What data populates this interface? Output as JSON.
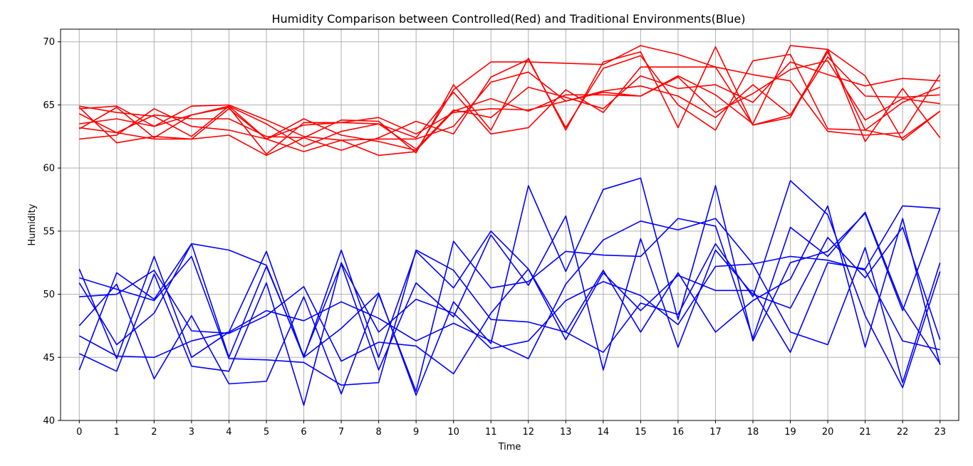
{
  "chart_data": {
    "type": "line",
    "title": "Humidity Comparison between Controlled(Red) and Traditional Environments(Blue)",
    "xlabel": "Time",
    "ylabel": "Humidity",
    "x": [
      0,
      1,
      2,
      3,
      4,
      5,
      6,
      7,
      8,
      9,
      10,
      11,
      12,
      13,
      14,
      15,
      16,
      17,
      18,
      19,
      20,
      21,
      22,
      23
    ],
    "xlim": [
      -0.5,
      23.5
    ],
    "ylim": [
      40,
      71
    ],
    "yticks": [
      40,
      45,
      50,
      55,
      60,
      65,
      70
    ],
    "grid": true,
    "colors": {
      "controlled": "#ff0000",
      "traditional": "#0000ff"
    },
    "series": [
      {
        "group": "controlled",
        "values": [
          64.8,
          62.0,
          62.5,
          62.3,
          62.6,
          61.0,
          62.4,
          63.8,
          63.7,
          61.2,
          66.6,
          63.0,
          68.7,
          63.0,
          68.4,
          69.2,
          63.2,
          69.6,
          63.4,
          64.0,
          69.4,
          67.3,
          62.2,
          64.5
        ]
      },
      {
        "group": "controlled",
        "values": [
          63.2,
          62.8,
          62.3,
          62.3,
          64.7,
          62.3,
          61.3,
          62.2,
          61.0,
          61.3,
          66.2,
          68.4,
          68.4,
          68.3,
          68.2,
          69.7,
          69.0,
          68.0,
          63.4,
          64.2,
          69.2,
          63.0,
          62.4,
          64.5
        ]
      },
      {
        "group": "controlled",
        "values": [
          62.3,
          62.6,
          64.7,
          63.3,
          63.0,
          62.3,
          63.9,
          62.6,
          62.1,
          61.4,
          64.5,
          65.5,
          64.5,
          65.8,
          65.8,
          65.7,
          67.3,
          65.8,
          63.5,
          69.7,
          69.4,
          62.1,
          66.3,
          62.4
        ]
      },
      {
        "group": "controlled",
        "values": [
          63.5,
          63.9,
          63.3,
          64.2,
          64.8,
          61.1,
          63.6,
          63.6,
          63.5,
          62.4,
          66.0,
          62.7,
          63.2,
          66.2,
          64.4,
          68.0,
          68.0,
          68.0,
          67.4,
          66.9,
          62.9,
          62.6,
          62.8,
          67.4
        ]
      },
      {
        "group": "controlled",
        "values": [
          64.3,
          62.8,
          64.2,
          63.9,
          63.9,
          62.5,
          62.4,
          61.4,
          62.4,
          63.7,
          62.7,
          67.2,
          68.6,
          63.2,
          67.9,
          68.9,
          65.0,
          63.0,
          68.5,
          69.0,
          63.1,
          63.0,
          65.2,
          66.4
        ]
      },
      {
        "group": "controlled",
        "values": [
          64.9,
          64.4,
          64.1,
          62.5,
          64.9,
          63.5,
          61.7,
          62.9,
          63.5,
          61.5,
          64.6,
          64.0,
          66.4,
          65.6,
          64.7,
          67.3,
          66.3,
          66.6,
          65.2,
          68.4,
          67.4,
          66.5,
          67.1,
          66.9
        ]
      },
      {
        "group": "controlled",
        "values": [
          63.1,
          64.8,
          62.4,
          64.2,
          64.9,
          62.3,
          63.4,
          63.6,
          64.0,
          62.7,
          64.4,
          64.7,
          64.6,
          65.3,
          66.1,
          66.5,
          65.7,
          64.0,
          66.6,
          64.2,
          68.8,
          65.7,
          65.6,
          65.8
        ]
      },
      {
        "group": "controlled",
        "values": [
          64.7,
          64.9,
          63.3,
          64.9,
          65.0,
          63.8,
          62.5,
          62.2,
          62.3,
          62.3,
          63.3,
          66.8,
          67.6,
          65.3,
          66.0,
          65.7,
          67.2,
          64.4,
          65.9,
          67.8,
          68.5,
          63.8,
          65.5,
          65.1
        ]
      },
      {
        "group": "traditional",
        "values": [
          52.0,
          44.9,
          53.0,
          45.0,
          47.0,
          53.4,
          45.0,
          53.5,
          45.0,
          53.4,
          50.5,
          55.0,
          52.0,
          47.0,
          51.9,
          47.0,
          51.7,
          47.0,
          49.5,
          51.2,
          57.0,
          45.8,
          56.0,
          44.4
        ]
      },
      {
        "group": "traditional",
        "values": [
          44.0,
          51.7,
          49.6,
          54.0,
          45.0,
          52.2,
          45.1,
          52.4,
          44.0,
          50.9,
          48.2,
          54.7,
          50.7,
          56.2,
          44.0,
          54.4,
          45.8,
          53.5,
          50.0,
          48.9,
          54.5,
          51.3,
          55.3,
          46.4
        ]
      },
      {
        "group": "traditional",
        "values": [
          51.3,
          50.4,
          49.5,
          53.0,
          44.9,
          44.8,
          44.6,
          42.8,
          43.0,
          53.5,
          51.9,
          48.0,
          47.8,
          47.0,
          45.4,
          49.3,
          48.4,
          54.0,
          49.8,
          59.0,
          56.3,
          48.3,
          42.6,
          51.8
        ]
      },
      {
        "group": "traditional",
        "values": [
          47.5,
          50.8,
          43.3,
          48.3,
          42.9,
          43.1,
          49.8,
          42.1,
          50.0,
          42.3,
          54.2,
          50.5,
          51.0,
          53.4,
          53.1,
          53.0,
          56.0,
          55.4,
          46.5,
          55.3,
          53.0,
          56.5,
          49.0,
          44.5
        ]
      },
      {
        "group": "traditional",
        "values": [
          50.9,
          46.0,
          48.5,
          54.0,
          53.5,
          52.3,
          45.0,
          47.3,
          50.1,
          42.0,
          49.4,
          46.1,
          58.6,
          51.8,
          58.3,
          59.2,
          48.0,
          58.6,
          46.3,
          52.5,
          53.4,
          56.4,
          48.7,
          56.8
        ]
      },
      {
        "group": "traditional",
        "values": [
          45.3,
          43.9,
          51.6,
          44.3,
          43.9,
          50.9,
          41.2,
          52.5,
          47.0,
          49.6,
          48.5,
          45.7,
          46.3,
          49.5,
          51.0,
          49.9,
          47.6,
          52.2,
          52.4,
          47.0,
          46.0,
          53.7,
          43.0,
          52.5
        ]
      },
      {
        "group": "traditional",
        "values": [
          49.8,
          50.0,
          51.9,
          47.1,
          46.9,
          48.3,
          50.6,
          44.7,
          46.2,
          45.9,
          43.7,
          48.5,
          52.0,
          46.4,
          51.7,
          48.7,
          51.5,
          50.3,
          50.3,
          45.4,
          52.5,
          52.0,
          57.0,
          56.8
        ]
      },
      {
        "group": "traditional",
        "values": [
          46.7,
          45.1,
          45.0,
          46.3,
          47.0,
          48.7,
          47.9,
          49.4,
          48.1,
          46.3,
          47.7,
          46.3,
          44.9,
          50.8,
          54.3,
          55.8,
          55.1,
          56.0,
          52.4,
          53.0,
          52.7,
          51.9,
          46.3,
          45.6
        ]
      }
    ]
  }
}
